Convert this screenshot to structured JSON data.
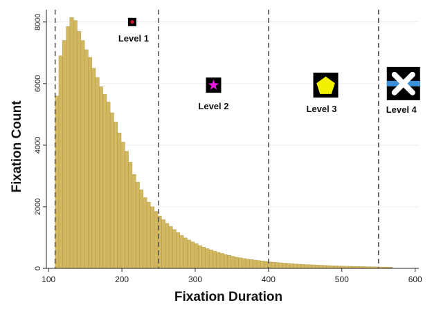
{
  "chart_data": {
    "type": "bar",
    "xlabel": "Fixation Duration",
    "ylabel": "Fixation Count",
    "xlim": [
      97,
      605
    ],
    "ylim": [
      0,
      8400
    ],
    "xticks": [
      100,
      200,
      300,
      400,
      500,
      600
    ],
    "yticks": [
      0,
      2000,
      4000,
      6000,
      8000
    ],
    "grid": true,
    "bin_start": 109,
    "bin_width": 5,
    "values": [
      5600,
      6900,
      7400,
      7850,
      8150,
      8050,
      7700,
      7400,
      7100,
      6850,
      6500,
      6200,
      5900,
      5650,
      5400,
      5050,
      4750,
      4400,
      4100,
      3800,
      3450,
      3050,
      2800,
      2550,
      2300,
      2150,
      2000,
      1850,
      1700,
      1580,
      1460,
      1360,
      1260,
      1160,
      1070,
      990,
      920,
      860,
      800,
      740,
      690,
      640,
      600,
      560,
      520,
      485,
      450,
      420,
      390,
      360,
      340,
      320,
      300,
      285,
      270,
      255,
      240,
      225,
      212,
      200,
      190,
      180,
      170,
      160,
      150,
      142,
      135,
      128,
      121,
      115,
      110,
      105,
      100,
      95,
      90,
      86,
      82,
      78,
      74,
      70,
      67,
      64,
      61,
      58,
      55,
      52,
      49,
      46,
      44,
      42,
      40,
      38
    ],
    "thresholds": [
      109,
      250,
      400,
      550
    ],
    "annotations": [
      {
        "text": "Level 1",
        "marker": "red-dot-in-black-square",
        "x": 214,
        "y": 8000
      },
      {
        "text": "Level 2",
        "marker": "magenta-star-in-black-square",
        "x": 325,
        "y": 5950
      },
      {
        "text": "Level 3",
        "marker": "yellow-pentagon-in-black-square",
        "x": 478,
        "y": 5950
      },
      {
        "text": "Level 4",
        "marker": "white-x-on-blue-in-black-square",
        "x": 584,
        "y": 6000
      }
    ],
    "colors": {
      "bar": "#d2b961",
      "bar_edge": "#b39a45",
      "threshold": "#555555",
      "grid": "#ececec"
    }
  }
}
